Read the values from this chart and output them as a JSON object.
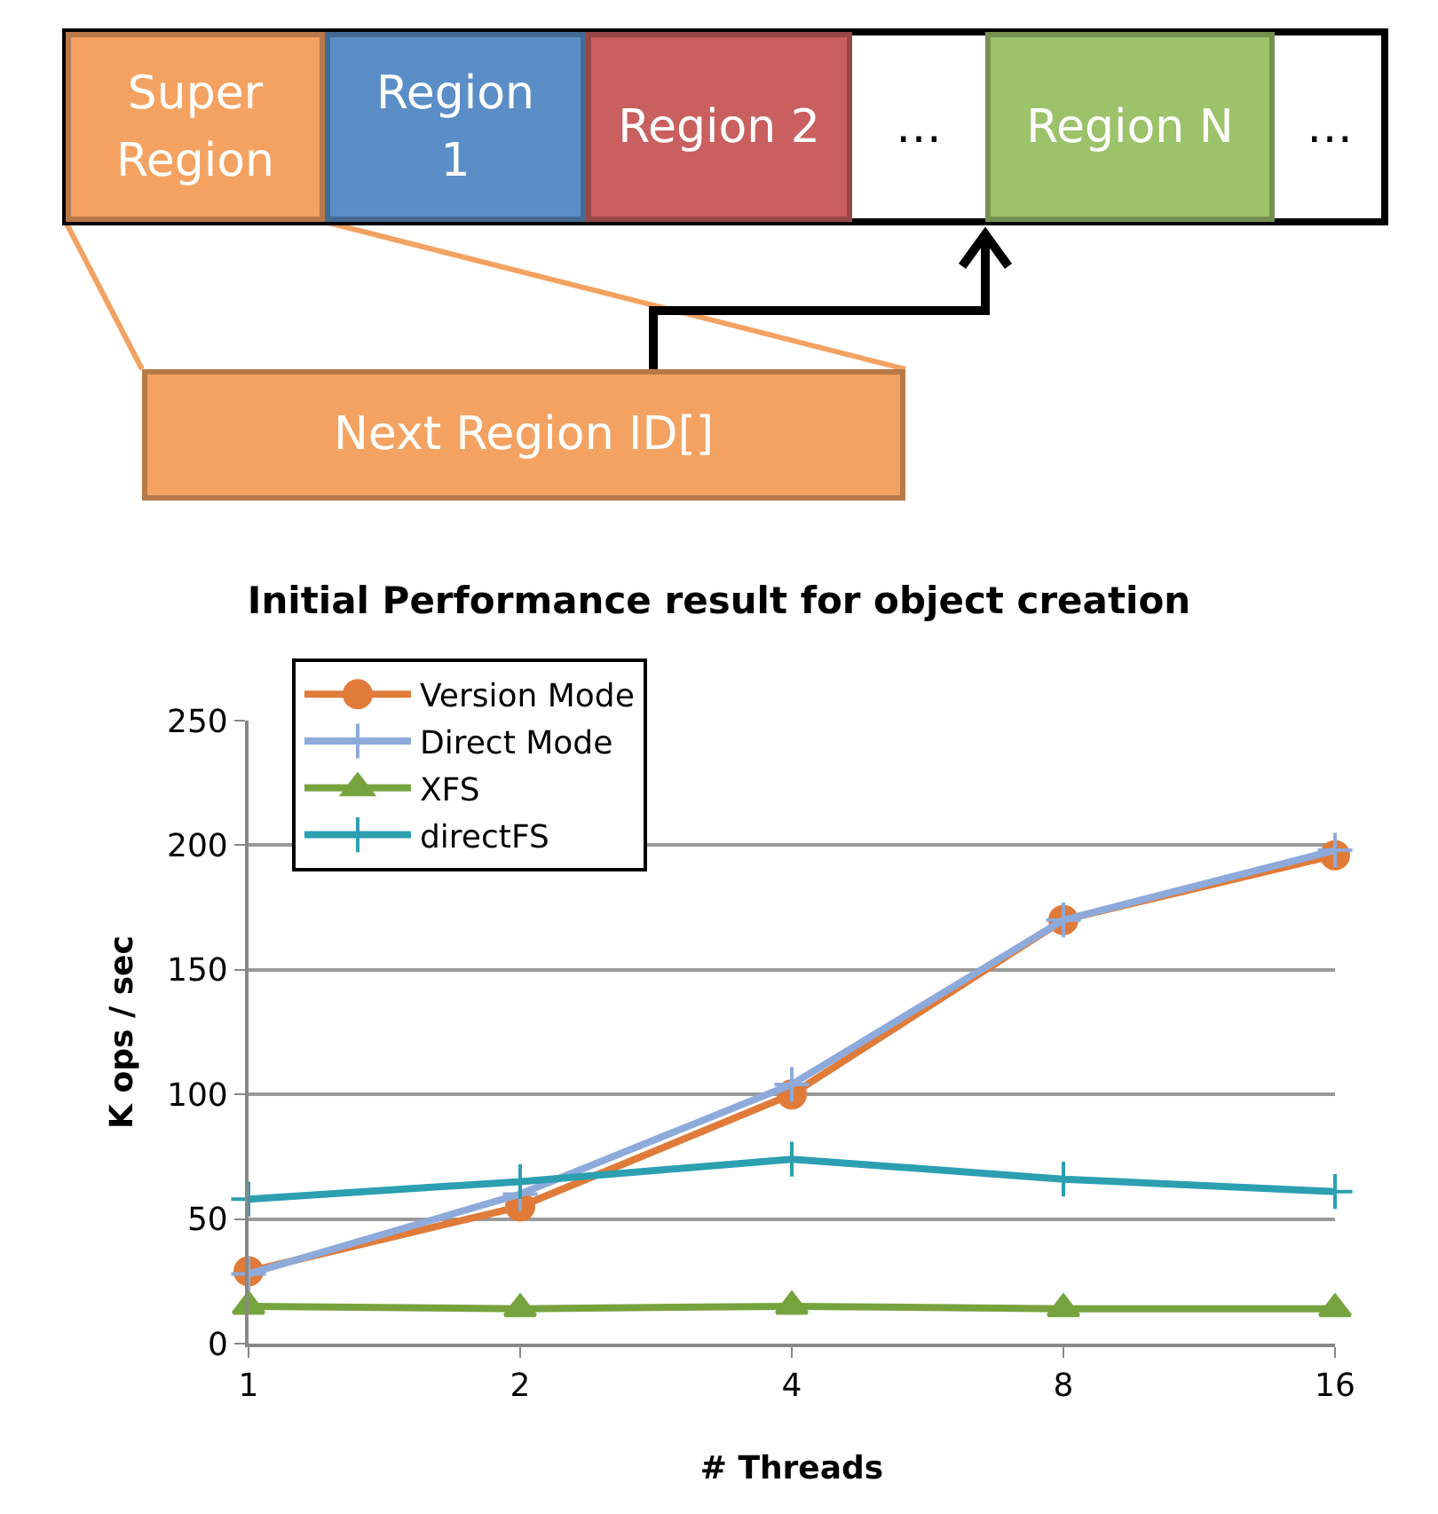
{
  "chart_data": [
    {
      "type": "other",
      "annotations": [
        "Super Region",
        "Region 1",
        "Region 2",
        "…",
        "Region N",
        "…",
        "Next Region ID[]"
      ],
      "colors": [
        "#f4a261",
        "#5b8ec6",
        "#c95f5f",
        "#ffffff",
        "#9cc26a",
        "#ffffff",
        "#f4a261"
      ]
    },
    {
      "type": "line",
      "title": "Initial Performance result for object creation",
      "xlabel": "# Threads",
      "ylabel": "K ops / sec",
      "categories": [
        "1",
        "2",
        "4",
        "8",
        "16"
      ],
      "ylim": [
        0,
        250
      ],
      "yticks": [
        0,
        50,
        100,
        150,
        200,
        250
      ],
      "grid": "y",
      "legend": "top left",
      "line_style": "solid",
      "series": [
        {
          "name": "Version Mode",
          "color": "#e07b39",
          "marker": "circle",
          "values": [
            29,
            55,
            100,
            170,
            196
          ]
        },
        {
          "name": "Direct Mode",
          "color": "#8eaadb",
          "marker": "cross",
          "values": [
            28,
            60,
            104,
            170,
            198
          ]
        },
        {
          "name": "XFS",
          "color": "#77a33f",
          "marker": "triangle",
          "values": [
            15,
            14,
            15,
            14,
            14
          ]
        },
        {
          "name": "directFS",
          "color": "#2c9fb0",
          "marker": "cross",
          "values": [
            58,
            65,
            74,
            66,
            61
          ]
        }
      ]
    }
  ]
}
